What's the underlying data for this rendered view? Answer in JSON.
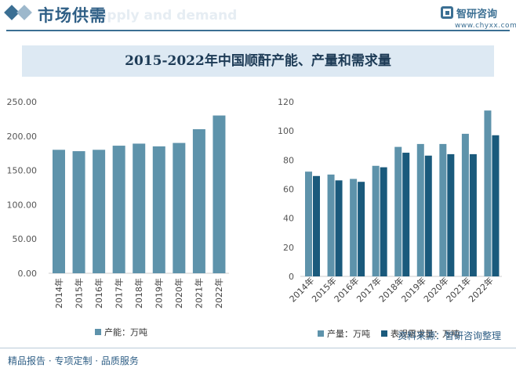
{
  "header": {
    "title": "市场供需",
    "ghost_text": "Supply and demand",
    "logo_name": "智研咨询",
    "logo_url": "www.chyxx.com"
  },
  "main_title": "2015-2022年中国顺酐产能、产量和需求量",
  "charts": {
    "left": {
      "type": "bar",
      "categories": [
        "2014年",
        "2015年",
        "2016年",
        "2017年",
        "2018年",
        "2019年",
        "2020年",
        "2021年",
        "2022年"
      ],
      "series": [
        {
          "name": "产能：万吨",
          "values": [
            180,
            178,
            180,
            186,
            189,
            185,
            190,
            210,
            230
          ],
          "color": "#5e93ab"
        }
      ],
      "ylim": [
        0,
        250
      ],
      "yticks": [
        "0.00",
        "50.00",
        "100.00",
        "150.00",
        "200.00",
        "250.00"
      ],
      "legend_position": "bottom-center"
    },
    "right": {
      "type": "bar",
      "categories": [
        "2014年",
        "2015年",
        "2016年",
        "2017年",
        "2018年",
        "2019年",
        "2020年",
        "2021年",
        "2022年"
      ],
      "series": [
        {
          "name": "产量：万吨",
          "values": [
            72,
            70,
            67,
            76,
            89,
            91,
            91,
            98,
            114
          ],
          "color": "#5e93ab"
        },
        {
          "name": "表观需求量：万吨",
          "values": [
            69,
            66,
            65,
            75,
            85,
            83,
            84,
            84,
            97
          ],
          "color": "#1a5a7c"
        }
      ],
      "ylim": [
        0,
        120
      ],
      "yticks": [
        "0",
        "20",
        "40",
        "60",
        "80",
        "100",
        "120"
      ],
      "legend_position": "bottom-center"
    }
  },
  "source": "资料来源：智研咨询整理",
  "footer": "精品报告 · 专项定制 · 品质服务"
}
